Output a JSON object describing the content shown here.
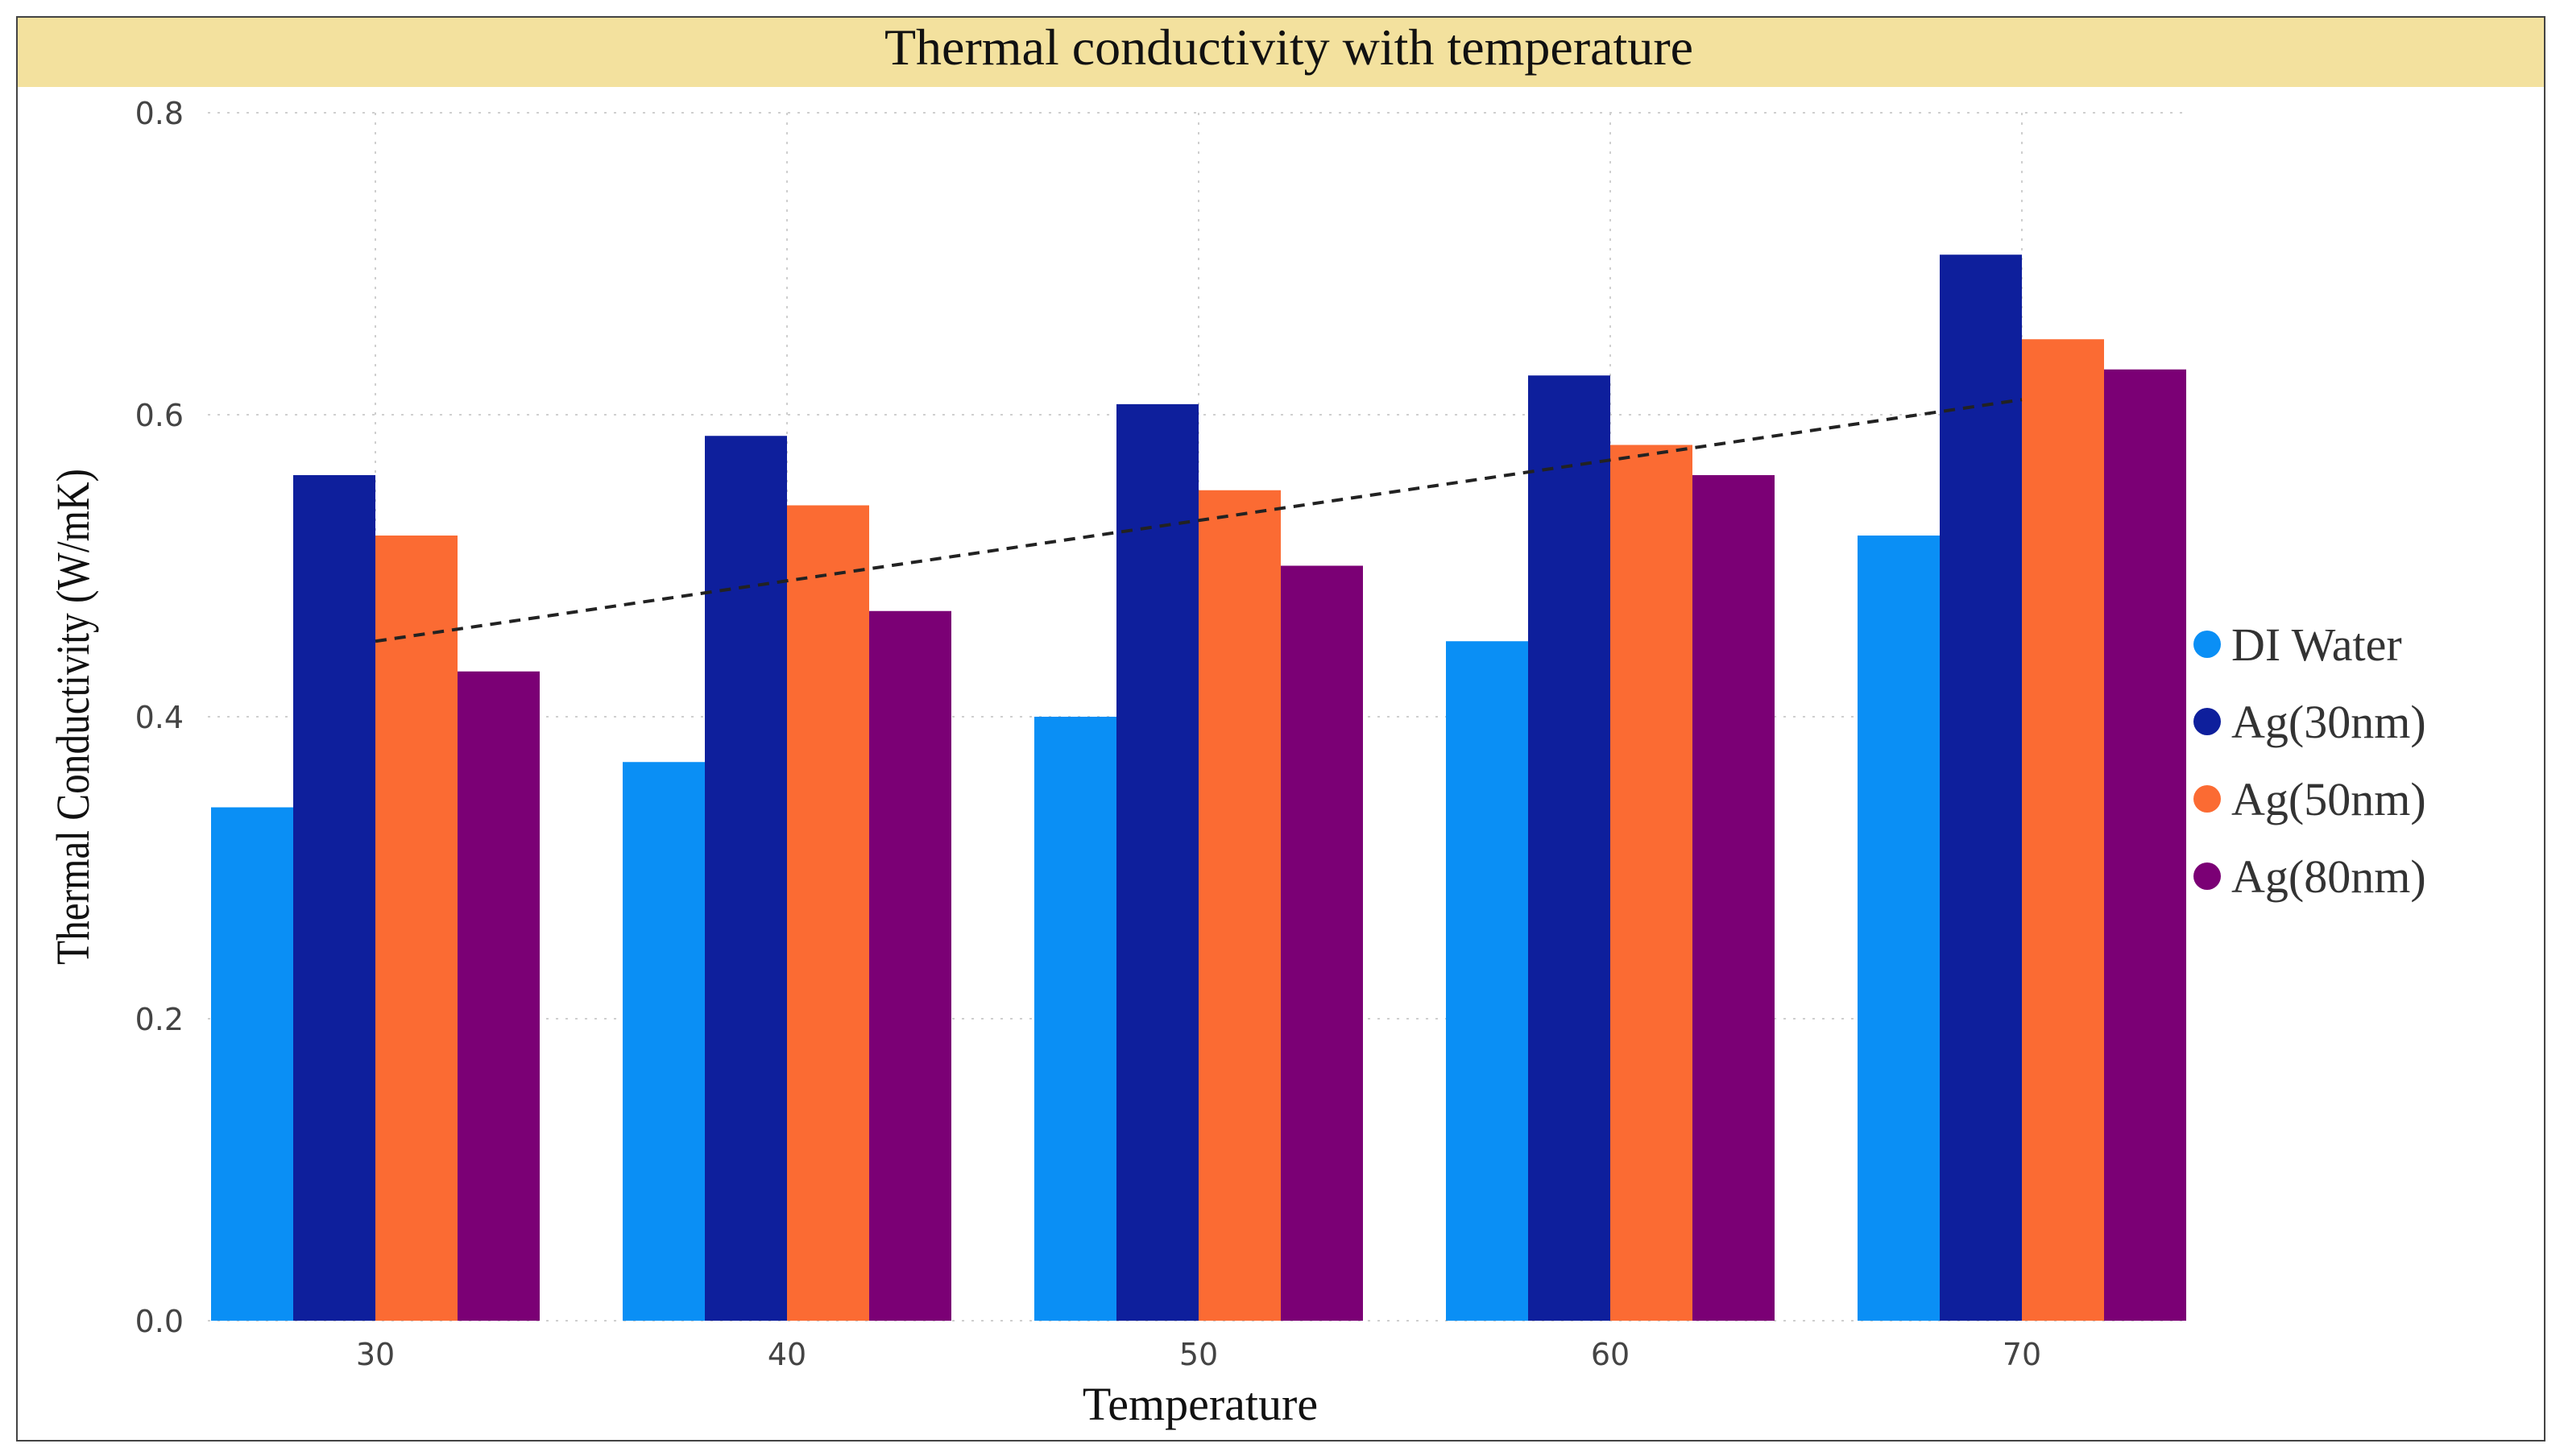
{
  "chart_data": {
    "type": "bar",
    "title": "Thermal conductivity with temperature",
    "xlabel": "Temperature",
    "ylabel": "Thermal Conductivity (W/mK)",
    "categories": [
      "30",
      "40",
      "50",
      "60",
      "70"
    ],
    "ylim": [
      0,
      0.8
    ],
    "yticks": [
      "0.0",
      "0.2",
      "0.4",
      "0.6",
      "0.8"
    ],
    "grid": true,
    "legend_position": "right",
    "series": [
      {
        "name": "DI Water",
        "color": "#0a8ff5",
        "values": [
          0.34,
          0.37,
          0.4,
          0.45,
          0.52
        ]
      },
      {
        "name": "Ag(30nm)",
        "color": "#0e1f9c",
        "values": [
          0.56,
          0.586,
          0.607,
          0.626,
          0.706
        ]
      },
      {
        "name": "Ag(50nm)",
        "color": "#fb6b33",
        "values": [
          0.52,
          0.54,
          0.55,
          0.58,
          0.65
        ]
      },
      {
        "name": "Ag(80nm)",
        "color": "#7b0075",
        "values": [
          0.43,
          0.47,
          0.5,
          0.56,
          0.63
        ]
      }
    ],
    "trendline": {
      "style": "dashed",
      "color": "#222222",
      "x_from": "30",
      "x_to": "70",
      "y_from": 0.45,
      "y_to": 0.61
    },
    "title_background": "#f3e19e"
  }
}
